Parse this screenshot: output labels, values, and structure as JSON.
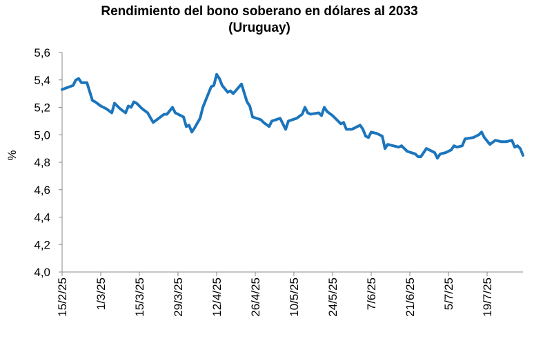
{
  "chart_data": {
    "type": "line",
    "title": [
      "Rendimiento del bono soberano en dólares al 2033",
      "(Uruguay)"
    ],
    "y_label": "%",
    "x": [
      "2025-02-15",
      "2025-02-19",
      "2025-02-20",
      "2025-02-21",
      "2025-02-22",
      "2025-02-24",
      "2025-02-26",
      "2025-02-27",
      "2025-03-01",
      "2025-03-03",
      "2025-03-05",
      "2025-03-06",
      "2025-03-08",
      "2025-03-10",
      "2025-03-11",
      "2025-03-12",
      "2025-03-13",
      "2025-03-14",
      "2025-03-16",
      "2025-03-18",
      "2025-03-20",
      "2025-03-22",
      "2025-03-24",
      "2025-03-25",
      "2025-03-27",
      "2025-03-28",
      "2025-03-31",
      "2025-04-01",
      "2025-04-02",
      "2025-04-03",
      "2025-04-04",
      "2025-04-06",
      "2025-04-07",
      "2025-04-09",
      "2025-04-10",
      "2025-04-11",
      "2025-04-12",
      "2025-04-13",
      "2025-04-14",
      "2025-04-16",
      "2025-04-17",
      "2025-04-18",
      "2025-04-21",
      "2025-04-23",
      "2025-04-24",
      "2025-04-25",
      "2025-04-28",
      "2025-04-29",
      "2025-05-01",
      "2025-05-02",
      "2025-05-05",
      "2025-05-07",
      "2025-05-08",
      "2025-05-11",
      "2025-05-13",
      "2025-05-14",
      "2025-05-15",
      "2025-05-16",
      "2025-05-19",
      "2025-05-20",
      "2025-05-21",
      "2025-05-22",
      "2025-05-24",
      "2025-05-26",
      "2025-05-27",
      "2025-05-28",
      "2025-05-29",
      "2025-05-31",
      "2025-06-02",
      "2025-06-03",
      "2025-06-04",
      "2025-06-05",
      "2025-06-06",
      "2025-06-07",
      "2025-06-09",
      "2025-06-11",
      "2025-06-12",
      "2025-06-13",
      "2025-06-15",
      "2025-06-17",
      "2025-06-18",
      "2025-06-20",
      "2025-06-23",
      "2025-06-24",
      "2025-06-25",
      "2025-06-27",
      "2025-06-29",
      "2025-06-30",
      "2025-07-01",
      "2025-07-02",
      "2025-07-04",
      "2025-07-06",
      "2025-07-07",
      "2025-07-08",
      "2025-07-10",
      "2025-07-11",
      "2025-07-14",
      "2025-07-16",
      "2025-07-17",
      "2025-07-18",
      "2025-07-20",
      "2025-07-22",
      "2025-07-24",
      "2025-07-26",
      "2025-07-28",
      "2025-07-29",
      "2025-07-30",
      "2025-07-31",
      "2025-08-01"
    ],
    "series": [
      {
        "name": "Rendimiento",
        "color": "#1b75bc",
        "values": [
          5.33,
          5.36,
          5.4,
          5.41,
          5.38,
          5.38,
          5.25,
          5.24,
          5.21,
          5.19,
          5.16,
          5.23,
          5.19,
          5.16,
          5.21,
          5.2,
          5.24,
          5.23,
          5.19,
          5.16,
          5.09,
          5.12,
          5.15,
          5.15,
          5.2,
          5.16,
          5.13,
          5.06,
          5.07,
          5.02,
          5.05,
          5.12,
          5.2,
          5.3,
          5.35,
          5.36,
          5.44,
          5.41,
          5.36,
          5.31,
          5.32,
          5.3,
          5.37,
          5.24,
          5.21,
          5.13,
          5.11,
          5.09,
          5.06,
          5.1,
          5.12,
          5.04,
          5.1,
          5.12,
          5.15,
          5.2,
          5.16,
          5.15,
          5.16,
          5.14,
          5.2,
          5.17,
          5.14,
          5.1,
          5.08,
          5.09,
          5.04,
          5.04,
          5.06,
          5.07,
          5.04,
          4.99,
          4.98,
          5.02,
          5.01,
          4.99,
          4.9,
          4.93,
          4.92,
          4.91,
          4.92,
          4.88,
          4.86,
          4.84,
          4.84,
          4.9,
          4.88,
          4.87,
          4.83,
          4.86,
          4.87,
          4.89,
          4.92,
          4.91,
          4.92,
          4.97,
          4.98,
          5.0,
          5.02,
          4.98,
          4.93,
          4.96,
          4.95,
          4.95,
          4.96,
          4.91,
          4.92,
          4.9,
          4.85
        ]
      }
    ],
    "xlim": [
      "2025-02-15",
      "2025-08-01"
    ],
    "xticks": [
      {
        "value": "2025-02-15",
        "label": "15/2/25"
      },
      {
        "value": "2025-03-01",
        "label": "1/3/25"
      },
      {
        "value": "2025-03-15",
        "label": "15/3/25"
      },
      {
        "value": "2025-03-29",
        "label": "29/3/25"
      },
      {
        "value": "2025-04-12",
        "label": "12/4/25"
      },
      {
        "value": "2025-04-26",
        "label": "26/4/25"
      },
      {
        "value": "2025-05-10",
        "label": "10/5/25"
      },
      {
        "value": "2025-05-24",
        "label": "24/5/25"
      },
      {
        "value": "2025-06-07",
        "label": "7/6/25"
      },
      {
        "value": "2025-06-21",
        "label": "21/6/25"
      },
      {
        "value": "2025-07-05",
        "label": "5/7/25"
      },
      {
        "value": "2025-07-19",
        "label": "19/7/25"
      }
    ],
    "ylim": [
      4.0,
      5.6
    ],
    "yticks": [
      {
        "value": 4.0,
        "label": "4,0"
      },
      {
        "value": 4.2,
        "label": "4,2"
      },
      {
        "value": 4.4,
        "label": "4,4"
      },
      {
        "value": 4.6,
        "label": "4,6"
      },
      {
        "value": 4.8,
        "label": "4,8"
      },
      {
        "value": 5.0,
        "label": "5,0"
      },
      {
        "value": 5.2,
        "label": "5,2"
      },
      {
        "value": 5.4,
        "label": "5,4"
      },
      {
        "value": 5.6,
        "label": "5,6"
      }
    ],
    "grid": false
  }
}
